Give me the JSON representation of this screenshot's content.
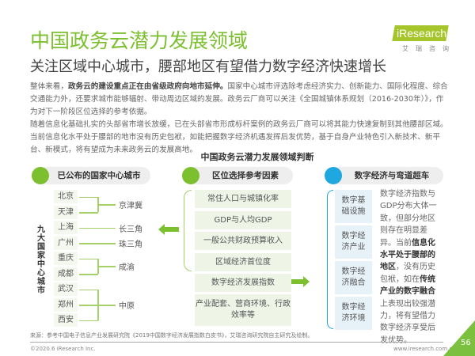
{
  "header": {
    "title": "中国政务云潜力发展领域",
    "subtitle": "关注区域中心城市，腰部地区有望借力数字经济快速增长",
    "logo": "iResearch",
    "logo_sub": "艾瑞咨询"
  },
  "body": {
    "p1_lead": "整体来看，",
    "p1_bold": "政务云的建设重点正在由省级政府向地市延伸。",
    "p1_rest": "国家中心城市评选除考虑经济实力、创新能力、国际化程度、综合交通能力外，还要求城市能够辐射、带动周边区域的发展。政务云厂商可以关注《全国城镇体系规划（2016-2030年）》，作为对下一阶段区位选择的参考依据。",
    "p2": "随着信息化基础扎实的头部省市增长放缓，已在头部省市形成标杆案例的政务云厂商可以将其能力快速复制到其他腰部区域。当前信息化水平处于腰部的地市没有历史包袱，如能把握数字经济机遇发挥后发优势，基于自身产业特色引入新技术、新平台、新模式，将有望成为未来政务云的发展高地。"
  },
  "diagram": {
    "title": "中国政务云潜力发展领域判断",
    "left": {
      "header": "已公布的国家中心城市",
      "vertical_label": "九大国家中心城市",
      "cities": [
        "北京",
        "天津",
        "上海",
        "广州",
        "重庆",
        "成都",
        "武汉",
        "郑州",
        "西安"
      ],
      "regions": [
        "京津冀",
        "长三角",
        "珠三角",
        "成渝",
        "中原"
      ]
    },
    "middle": {
      "header": "区位选择参考因素",
      "factors": [
        "常住人口与城镇化率",
        "GDP与人均GDP",
        "一般公共财政预算收入",
        "区域经济首位度",
        "数字经济发展指数",
        "产业配套、营商环境、行政效率等"
      ]
    },
    "right": {
      "header": "数字经济与弯道超车",
      "items": [
        "数字基础设施",
        "数字经济产业",
        "数字经济融合",
        "数字经济环境"
      ],
      "text_a": "数字经济指数与GDP分布大体一致，但部分地区则存在明显差异。当前",
      "text_b1": "信息化水平处于腰部的地区",
      "text_c": "，没有历史包袱，如在",
      "text_b2": "传统产业的数字融合",
      "text_d": "上表现出较强潜力，将有望借力数字经济享受后发优势。"
    }
  },
  "colors": {
    "green": "#7cbf2f",
    "blue": "#1fa8e0",
    "lime": "#a6c52a"
  },
  "footer": {
    "source": "来源：参考中国电子信息产业发展研究院《2019中国数字经济发展指数白皮书》，艾瑞咨询研究院自主研究及绘制。",
    "copyright": "©2020.6 iResearch Inc.",
    "url": "www.iresearch.com.cn",
    "page": "56"
  }
}
